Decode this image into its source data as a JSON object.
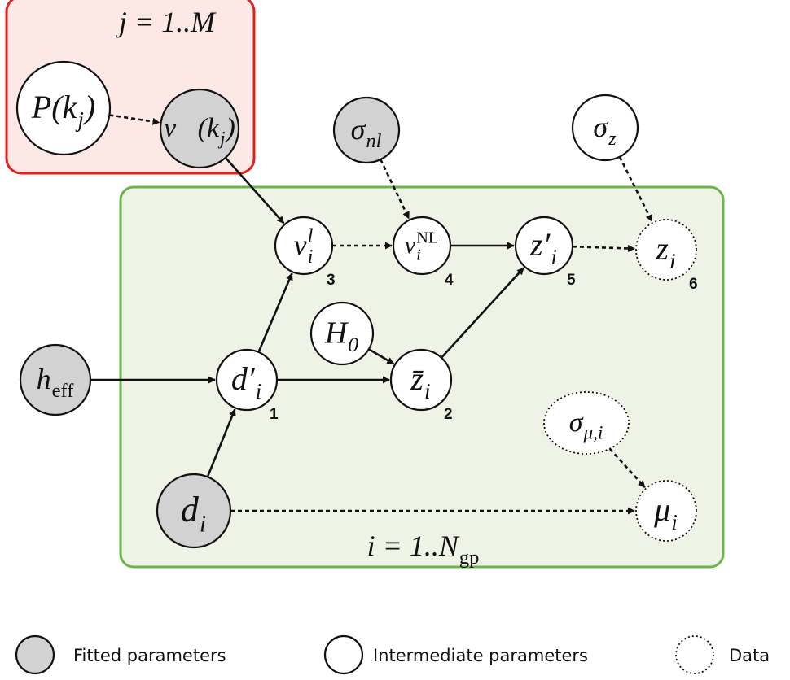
{
  "plates": [
    {
      "label": {
        "base": "j = 1..M"
      }
    },
    {
      "label": {
        "base": "i = 1..N",
        "sub": "gp"
      }
    }
  ],
  "nodes": [
    {
      "label": {
        "base": "P(k",
        "sub": "j",
        "after": ")"
      },
      "style": "white"
    },
    {
      "label": {
        "base": "v⃗(k",
        "sub": "j",
        "after": ")"
      },
      "style": "gray"
    },
    {
      "label": {
        "base": "σ",
        "sub": "nl"
      },
      "style": "gray"
    },
    {
      "label": {
        "base": "σ",
        "sub": "z"
      },
      "style": "white"
    },
    {
      "label": {
        "base": "v",
        "sup": "l",
        "sub": "i"
      },
      "style": "white",
      "number": "3"
    },
    {
      "label": {
        "base": "v",
        "sup": "NL",
        "sub": "i"
      },
      "style": "white",
      "number": "4"
    },
    {
      "label": {
        "base": "z′",
        "sub": "i"
      },
      "style": "white",
      "number": "5"
    },
    {
      "label": {
        "base": "z",
        "sub": "i"
      },
      "style": "dotted",
      "number": "6"
    },
    {
      "label": {
        "base": "H",
        "sub": "0"
      },
      "style": "white"
    },
    {
      "label": {
        "base": "d′",
        "sub": "i"
      },
      "style": "white",
      "number": "1"
    },
    {
      "label": {
        "base": "z̄",
        "sub": "i"
      },
      "style": "white",
      "number": "2"
    },
    {
      "label": {
        "base": "h",
        "sub": "eff"
      },
      "style": "gray"
    },
    {
      "label": {
        "base": "σ",
        "sub": "μ,i"
      },
      "style": "dotted"
    },
    {
      "label": {
        "base": "μ",
        "sub": "i"
      },
      "style": "dotted"
    },
    {
      "label": {
        "base": "d",
        "sub": "i"
      },
      "style": "gray"
    }
  ],
  "edges": [
    {
      "from": 0,
      "to": 1,
      "dashed": true
    },
    {
      "from": 1,
      "to": 4,
      "dashed": false
    },
    {
      "from": 2,
      "to": 5,
      "dashed": true
    },
    {
      "from": 3,
      "to": 7,
      "dashed": true
    },
    {
      "from": 4,
      "to": 5,
      "dashed": true
    },
    {
      "from": 5,
      "to": 6,
      "dashed": false
    },
    {
      "from": 6,
      "to": 7,
      "dashed": true
    },
    {
      "from": 8,
      "to": 10,
      "dashed": false
    },
    {
      "from": 9,
      "to": 10,
      "dashed": false
    },
    {
      "from": 10,
      "to": 6,
      "dashed": false
    },
    {
      "from": 9,
      "to": 4,
      "dashed": false
    },
    {
      "from": 11,
      "to": 9,
      "dashed": false
    },
    {
      "from": 14,
      "to": 9,
      "dashed": false
    },
    {
      "from": 14,
      "to": 13,
      "dashed": true
    },
    {
      "from": 12,
      "to": 13,
      "dashed": true
    }
  ],
  "legend": [
    {
      "label": "Fitted parameters",
      "style": "gray"
    },
    {
      "label": "Intermediate parameters",
      "style": "white"
    },
    {
      "label": "Data",
      "style": "dotted"
    }
  ]
}
